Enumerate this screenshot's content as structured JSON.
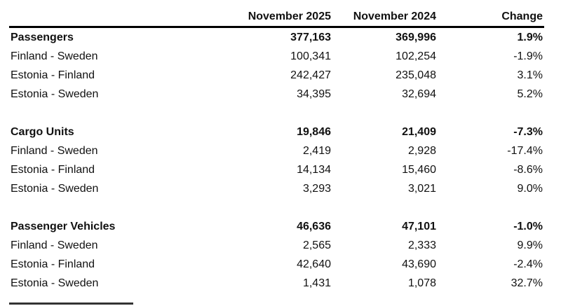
{
  "chart_data": {
    "type": "table",
    "columns": [
      "",
      "November 2025",
      "November 2024",
      "Change"
    ],
    "layout": {
      "numeric_columns_right_aligned": true,
      "header_rule": true,
      "grid": "off"
    },
    "colors": {
      "text": "#111111",
      "rule": "#000000",
      "background": "#ffffff"
    },
    "sections": [
      {
        "header": {
          "label": "Passengers",
          "nov2025": "377,163",
          "nov2024": "369,996",
          "change": "1.9%"
        },
        "rows": [
          {
            "label": "Finland - Sweden",
            "nov2025": "100,341",
            "nov2024": "102,254",
            "change": "-1.9%"
          },
          {
            "label": "Estonia - Finland",
            "nov2025": "242,427",
            "nov2024": "235,048",
            "change": "3.1%"
          },
          {
            "label": "Estonia - Sweden",
            "nov2025": "34,395",
            "nov2024": "32,694",
            "change": "5.2%"
          }
        ]
      },
      {
        "header": {
          "label": "Cargo Units",
          "nov2025": "19,846",
          "nov2024": "21,409",
          "change": "-7.3%"
        },
        "rows": [
          {
            "label": "Finland - Sweden",
            "nov2025": "2,419",
            "nov2024": "2,928",
            "change": "-17.4%"
          },
          {
            "label": "Estonia - Finland",
            "nov2025": "14,134",
            "nov2024": "15,460",
            "change": "-8.6%"
          },
          {
            "label": "Estonia - Sweden",
            "nov2025": "3,293",
            "nov2024": "3,021",
            "change": "9.0%"
          }
        ]
      },
      {
        "header": {
          "label": "Passenger Vehicles",
          "nov2025": "46,636",
          "nov2024": "47,101",
          "change": "-1.0%"
        },
        "rows": [
          {
            "label": "Finland - Sweden",
            "nov2025": "2,565",
            "nov2024": "2,333",
            "change": "9.9%"
          },
          {
            "label": "Estonia - Finland",
            "nov2025": "42,640",
            "nov2024": "43,690",
            "change": "-2.4%"
          },
          {
            "label": "Estonia - Sweden",
            "nov2025": "1,431",
            "nov2024": "1,078",
            "change": "32.7%"
          }
        ]
      }
    ]
  }
}
